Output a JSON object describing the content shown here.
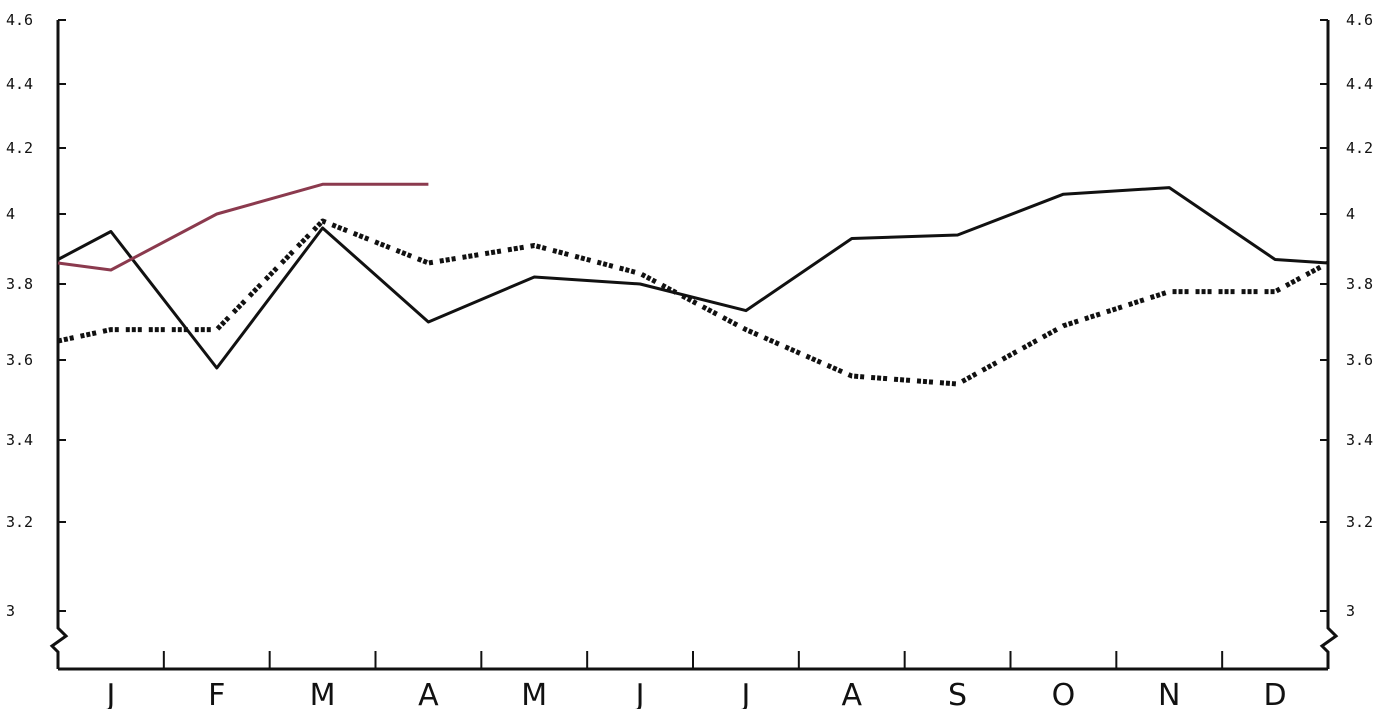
{
  "chart_data": {
    "type": "line",
    "categories": [
      "J",
      "F",
      "M",
      "A",
      "M",
      "J",
      "J",
      "A",
      "S",
      "O",
      "N",
      "D"
    ],
    "y_ticks": [
      "3",
      "3.2",
      "3.4",
      "3.6",
      "3.8",
      "4",
      "4.2",
      "4.4",
      "4.6"
    ],
    "y_tick_values": [
      3,
      3.2,
      3.4,
      3.6,
      3.8,
      4,
      4.2,
      4.4,
      4.6
    ],
    "ylim": [
      3,
      4.6
    ],
    "y_axis_break": true,
    "grid": false,
    "series": [
      {
        "style": "solid",
        "color": "#111111",
        "x": [
          0,
          0.5,
          1.5,
          2.5,
          3.5,
          4.5,
          5.5,
          6.5,
          7.5,
          8.5,
          9.5,
          10.5,
          11.5,
          12
        ],
        "values": [
          3.87,
          3.95,
          3.58,
          3.96,
          3.7,
          3.82,
          3.8,
          3.73,
          3.93,
          3.94,
          4.06,
          4.08,
          3.87,
          3.86
        ]
      },
      {
        "style": "dashed",
        "color": "#111111",
        "x": [
          0,
          0.5,
          1.5,
          2.5,
          3.5,
          4.5,
          5.5,
          6.5,
          7.5,
          8.5,
          9.5,
          10.5,
          11.5,
          12
        ],
        "values": [
          3.65,
          3.68,
          3.68,
          3.98,
          3.86,
          3.91,
          3.83,
          3.68,
          3.56,
          3.54,
          3.69,
          3.78,
          3.78,
          3.86
        ]
      },
      {
        "style": "solid",
        "color": "#8b3a4e",
        "x": [
          0,
          0.5,
          1.5,
          2.5,
          3.5
        ],
        "values": [
          3.86,
          3.84,
          4.0,
          4.09,
          4.09
        ]
      }
    ]
  }
}
